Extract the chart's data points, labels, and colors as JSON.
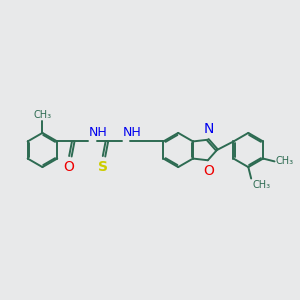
{
  "bg_color": "#e8e9ea",
  "bond_color": "#2d6b52",
  "bond_lw": 1.4,
  "atom_colors": {
    "N": "#0000ee",
    "O": "#ee0000",
    "S": "#cccc00",
    "NH": "#0000ee"
  },
  "font_size": 9,
  "xlim": [
    0,
    5.2
  ],
  "ylim": [
    0.5,
    3.0
  ]
}
